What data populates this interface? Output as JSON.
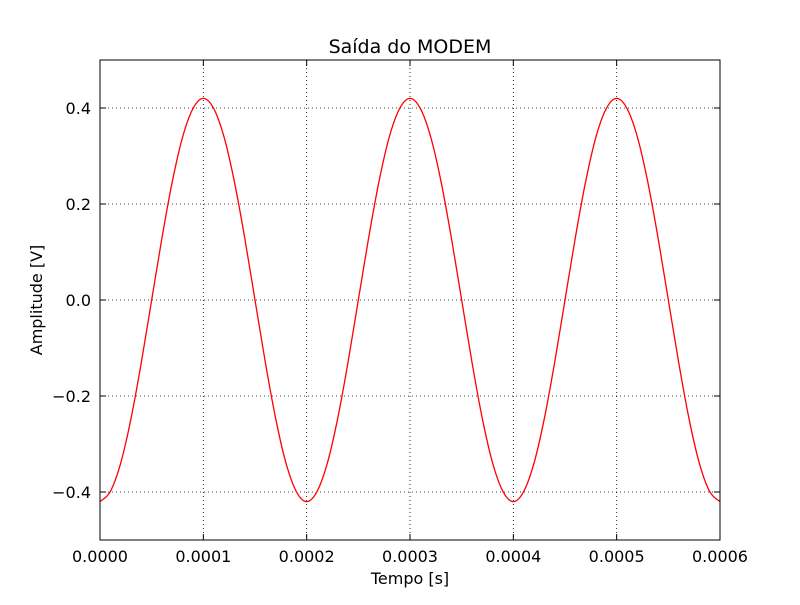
{
  "chart_data": {
    "type": "line",
    "title": "Saída do MODEM",
    "xlabel": "Tempo [s]",
    "ylabel": "Amplitude [V]",
    "xlim": [
      0,
      0.0006
    ],
    "ylim": [
      -0.5,
      0.5
    ],
    "grid": true,
    "legend": "none",
    "x_ticks": [
      0,
      0.0001,
      0.0002,
      0.0003,
      0.0004,
      0.0005,
      0.0006
    ],
    "x_tick_labels": [
      "0.0000",
      "0.0001",
      "0.0002",
      "0.0003",
      "0.0004",
      "0.0005",
      "0.0006"
    ],
    "y_ticks": [
      -0.4,
      -0.2,
      0.0,
      0.2,
      0.4
    ],
    "y_tick_labels": [
      "−0.4",
      "−0.2",
      "0.0",
      "0.2",
      "0.4"
    ],
    "series": [
      {
        "color": "#ff0000",
        "x": [
          0,
          1e-05,
          2e-05,
          3e-05,
          4e-05,
          5e-05,
          6e-05,
          7e-05,
          8e-05,
          9e-05,
          0.0001,
          0.00011,
          0.00012,
          0.00013,
          0.00014,
          0.00015,
          0.00016,
          0.00017,
          0.00018,
          0.00019,
          0.0002,
          0.00021,
          0.00022,
          0.00023,
          0.00024,
          0.00025,
          0.00026,
          0.00027,
          0.00028,
          0.00029,
          0.0003,
          0.00031,
          0.00032,
          0.00033,
          0.00034,
          0.00035,
          0.00036,
          0.00037,
          0.00038,
          0.00039,
          0.0004,
          0.00041,
          0.00042,
          0.00043,
          0.00044,
          0.00045,
          0.00046,
          0.00047,
          0.00048,
          0.00049,
          0.0005,
          0.00051,
          0.00052,
          0.00053,
          0.00054,
          0.00055,
          0.00056,
          0.00057,
          0.00058,
          0.00059,
          0.0006
        ],
        "y": [
          -0.42,
          -0.399,
          -0.34,
          -0.247,
          -0.13,
          0.0,
          0.13,
          0.247,
          0.34,
          0.399,
          0.42,
          0.399,
          0.34,
          0.247,
          0.13,
          0.0,
          -0.13,
          -0.247,
          -0.34,
          -0.399,
          -0.42,
          -0.399,
          -0.34,
          -0.247,
          -0.13,
          0.0,
          0.13,
          0.247,
          0.34,
          0.399,
          0.42,
          0.399,
          0.34,
          0.247,
          0.13,
          0.0,
          -0.13,
          -0.247,
          -0.34,
          -0.399,
          -0.42,
          -0.399,
          -0.34,
          -0.247,
          -0.13,
          0.0,
          0.13,
          0.247,
          0.34,
          0.399,
          0.42,
          0.399,
          0.34,
          0.247,
          0.13,
          0.0,
          -0.13,
          -0.247,
          -0.34,
          -0.399,
          -0.42
        ]
      }
    ]
  }
}
